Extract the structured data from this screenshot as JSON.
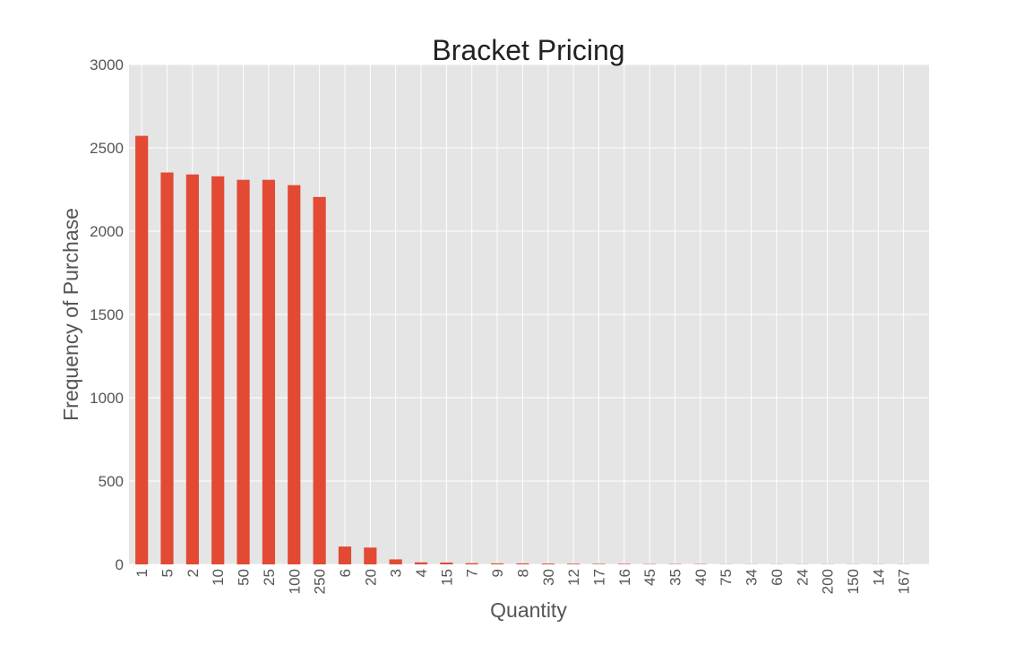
{
  "chart_data": {
    "type": "bar",
    "title": "Bracket Pricing",
    "xlabel": "Quantity",
    "ylabel": "Frequency of Purchase",
    "categories": [
      "1",
      "5",
      "2",
      "10",
      "50",
      "25",
      "100",
      "250",
      "6",
      "20",
      "3",
      "4",
      "15",
      "7",
      "9",
      "8",
      "30",
      "12",
      "17",
      "16",
      "45",
      "35",
      "40",
      "75",
      "34",
      "60",
      "24",
      "200",
      "150",
      "14",
      "167"
    ],
    "values": [
      2572,
      2352,
      2340,
      2329,
      2308,
      2308,
      2276,
      2205,
      107,
      101,
      30,
      12,
      11,
      7,
      6,
      6,
      5,
      4,
      3,
      3,
      2,
      2,
      2,
      1,
      1,
      1,
      1,
      1,
      1,
      1,
      1
    ],
    "ylim": [
      0,
      3000
    ],
    "yticks": [
      0,
      500,
      1000,
      1500,
      2000,
      2500,
      3000
    ],
    "grid": true,
    "bar_color": "#E24A33",
    "plot_background": "#E5E5E5",
    "grid_color": "#FFFFFF"
  }
}
